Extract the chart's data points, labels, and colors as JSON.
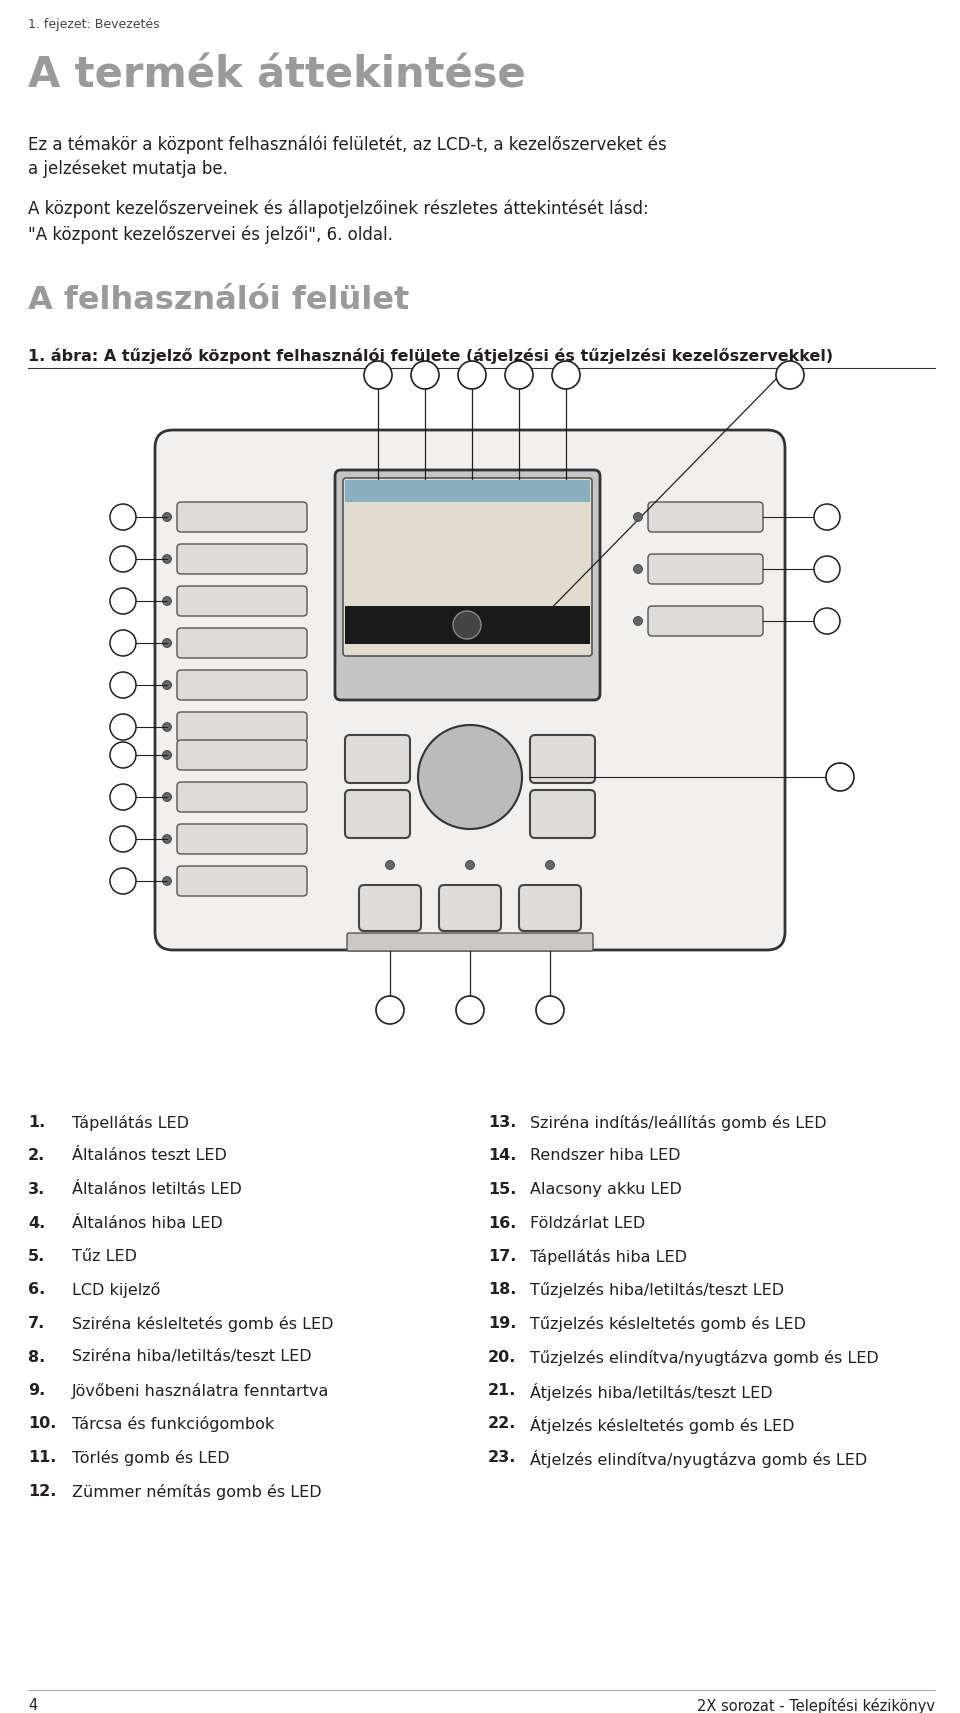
{
  "page_header": "1. fejezet: Bevezetés",
  "main_title": "A termék áttekintése",
  "body_text1": "Ez a témakör a központ felhasználói felületét, az LCD-t, a kezelőszerveket és\na jelzéseket mutatja be.",
  "body_text2": "A központ kezelőszerveinek és állapotjelzőinek részletes áttekintését lásd:\n\"A központ kezelőszervei és jelzői\", 6. oldal.",
  "section_title": "A felhasználói felület",
  "figure_caption": "1. ábra: A tűzjelző központ felhasználói felülete (átjelzési és tűzjelzési kezelőszervekkel)",
  "left_list_col1": [
    "1.",
    "2.",
    "3.",
    "4.",
    "5.",
    "6.",
    "7.",
    "8.",
    "9.",
    "10.",
    "11.",
    "12."
  ],
  "left_list_col2": [
    "Tápellátás LED",
    "Általános teszt LED",
    "Általános letiltás LED",
    "Általános hiba LED",
    "Tűz LED",
    "LCD kijelző",
    "Sziréna késleltetés gomb és LED",
    "Sziréna hiba/letiltás/teszt LED",
    "Jövőbeni használatra fenntartva",
    "Tárcsa és funkciógombok",
    "Törlés gomb és LED",
    "Zümmer némítás gomb és LED"
  ],
  "right_list_col1": [
    "13.",
    "14.",
    "15.",
    "16.",
    "17.",
    "18.",
    "19.",
    "20.",
    "21.",
    "22.",
    "23."
  ],
  "right_list_col2": [
    "Sziréna indítás/leállítás gomb és LED",
    "Rendszer hiba LED",
    "Alacsony akku LED",
    "Földzárlat LED",
    "Tápellátás hiba LED",
    "Tűzjelzés hiba/letiltás/teszt LED",
    "Tűzjelzés késleltetés gomb és LED",
    "Tűzjelzés elindítva/nyugtázva gomb és LED",
    "Átjelzés hiba/letiltás/teszt LED",
    "Átjelzés késleltetés gomb és LED",
    "Átjelzés elindítva/nyugtázva gomb és LED"
  ],
  "page_number": "4",
  "page_footer": "2X sorozat - Telepítési kézikönyv",
  "bg_color": "#ffffff",
  "text_color": "#231f20",
  "title_color": "#9a9a9a",
  "panel_fill": "#f2f0ee",
  "panel_border": "#333333",
  "btn_fill": "#dedbd8",
  "btn_border": "#555555",
  "lcd_fill": "#c5c5c5",
  "screen_fill": "#e0ddd0",
  "black_bar": "#1a1a1a",
  "status_bar_fill": "#8ab0c0"
}
